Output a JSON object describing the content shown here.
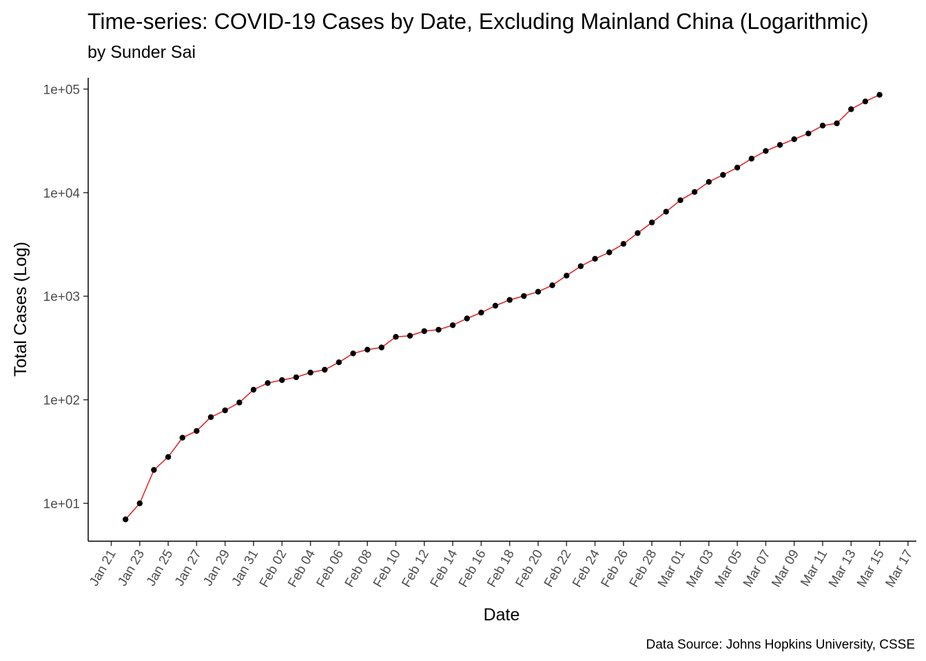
{
  "chart_data": {
    "type": "line",
    "title": "Time-series: COVID-19 Cases by Date, Excluding Mainland China (Logarithmic)",
    "subtitle": "by Sunder Sai",
    "xlabel": "Date",
    "ylabel": "Total Cases (Log)",
    "caption": "Data Source: Johns Hopkins University, CSSE",
    "y_scale": "log10",
    "ylim": [
      5,
      100000
    ],
    "grid": false,
    "line_color": "#e41a1c",
    "point_color": "#000000",
    "x_tick_labels": [
      "Jan 21",
      "Jan 23",
      "Jan 25",
      "Jan 27",
      "Jan 29",
      "Jan 31",
      "Feb 02",
      "Feb 04",
      "Feb 06",
      "Feb 08",
      "Feb 10",
      "Feb 12",
      "Feb 14",
      "Feb 16",
      "Feb 18",
      "Feb 20",
      "Feb 22",
      "Feb 24",
      "Feb 26",
      "Feb 28",
      "Mar 01",
      "Mar 03",
      "Mar 05",
      "Mar 07",
      "Mar 09",
      "Mar 11",
      "Mar 13",
      "Mar 15",
      "Mar 17"
    ],
    "y_tick_labels": [
      {
        "value": 10,
        "label": "1e+01"
      },
      {
        "value": 100,
        "label": "1e+02"
      },
      {
        "value": 1000,
        "label": "1e+03"
      },
      {
        "value": 10000,
        "label": "1e+04"
      },
      {
        "value": 100000,
        "label": "1e+05"
      }
    ],
    "x": [
      "Jan 22",
      "Jan 23",
      "Jan 24",
      "Jan 25",
      "Jan 26",
      "Jan 27",
      "Jan 28",
      "Jan 29",
      "Jan 30",
      "Jan 31",
      "Feb 01",
      "Feb 02",
      "Feb 03",
      "Feb 04",
      "Feb 05",
      "Feb 06",
      "Feb 07",
      "Feb 08",
      "Feb 09",
      "Feb 10",
      "Feb 11",
      "Feb 12",
      "Feb 13",
      "Feb 14",
      "Feb 15",
      "Feb 16",
      "Feb 17",
      "Feb 18",
      "Feb 19",
      "Feb 20",
      "Feb 21",
      "Feb 22",
      "Feb 23",
      "Feb 24",
      "Feb 25",
      "Feb 26",
      "Feb 27",
      "Feb 28",
      "Feb 29",
      "Mar 01",
      "Mar 02",
      "Mar 03",
      "Mar 04",
      "Mar 05",
      "Mar 06",
      "Mar 07",
      "Mar 08",
      "Mar 09",
      "Mar 10",
      "Mar 11",
      "Mar 12",
      "Mar 13",
      "Mar 14",
      "Mar 15"
    ],
    "values": [
      7,
      10,
      21,
      28,
      43,
      50,
      68,
      79,
      94,
      125,
      145,
      155,
      165,
      183,
      195,
      230,
      280,
      305,
      320,
      405,
      415,
      460,
      475,
      525,
      610,
      695,
      810,
      920,
      1005,
      1105,
      1275,
      1580,
      1950,
      2300,
      2650,
      3200,
      4070,
      5150,
      6550,
      8450,
      10150,
      12700,
      14850,
      17450,
      21300,
      25250,
      28900,
      32800,
      37300,
      44450,
      46700,
      64000,
      76000,
      88000
    ]
  }
}
